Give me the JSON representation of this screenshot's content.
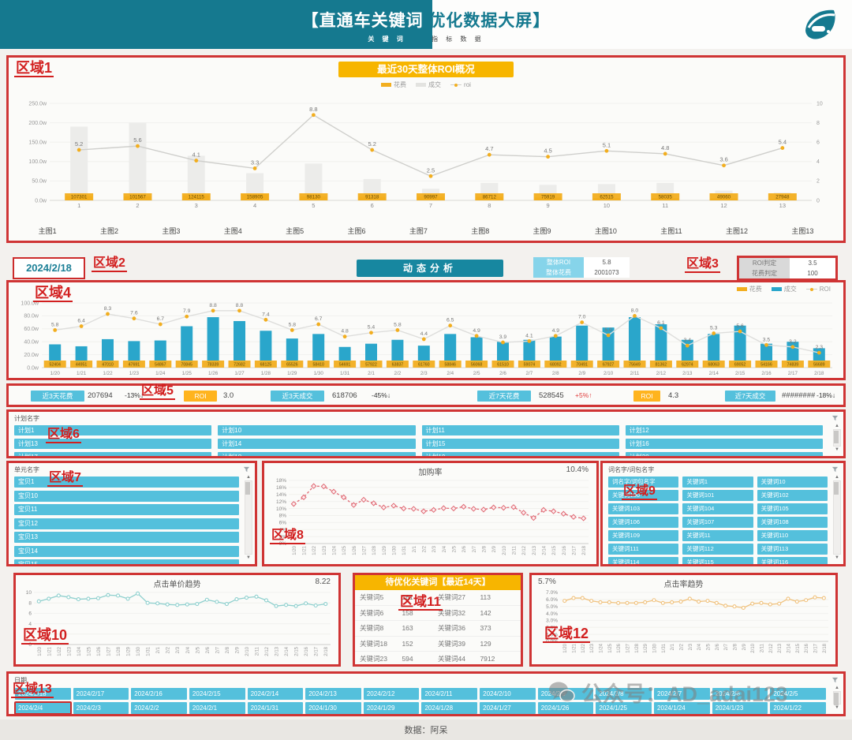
{
  "header": {
    "title_left": "【直通车关键词",
    "title_right": " 优化数据大屏】",
    "tab1": "关 键 词",
    "tab2": "指 标 数 据"
  },
  "annotations": [
    "区域1",
    "区域2",
    "区域3",
    "区域4",
    "区域5",
    "区域6",
    "区域7",
    "区域8",
    "区域9",
    "区域10",
    "区域11",
    "区域12",
    "区域13"
  ],
  "dates30": [
    "1/20",
    "1/21",
    "1/22",
    "1/23",
    "1/24",
    "1/25",
    "1/26",
    "1/27",
    "1/28",
    "1/29",
    "1/30",
    "1/31",
    "2/1",
    "2/2",
    "2/3",
    "2/4",
    "2/5",
    "2/6",
    "2/7",
    "2/8",
    "2/9",
    "2/10",
    "2/11",
    "2/12",
    "2/13",
    "2/14",
    "2/15",
    "2/16",
    "2/17",
    "2/18"
  ],
  "region1": {
    "banner": "最近30天整体ROI概况",
    "legend": [
      "花费",
      "成交",
      "roi"
    ],
    "thumbs": [
      "主图1",
      "主图2",
      "主图3",
      "主图4",
      "主图5",
      "主图6",
      "主图7",
      "主图8",
      "主图9",
      "主图10",
      "主图11",
      "主图12",
      "主图13"
    ]
  },
  "region2": {
    "date": "2024/2/18",
    "button": "动态分析",
    "overall": {
      "roi_label": "整体ROI",
      "roi_value": "5.8",
      "spend_label": "整体花费",
      "spend_value": "2001073"
    }
  },
  "region3": {
    "roi_label": "ROI判定",
    "roi_value": "3.5",
    "spend_label": "花费判定",
    "spend_value": "100"
  },
  "region4": {
    "legend": [
      "花费",
      "成交",
      "ROI"
    ]
  },
  "region5": {
    "items": [
      {
        "label": "近3天花费",
        "value": "207694",
        "delta": "-13%↓",
        "style": "blue",
        "red": false
      },
      {
        "label": "ROI",
        "value": "3.0",
        "delta": "",
        "style": "yellow",
        "red": false
      },
      {
        "label": "近3天成交",
        "value": "618706",
        "delta": "-45%↓",
        "style": "blue",
        "red": false
      },
      {
        "label": "近7天花费",
        "value": "528545",
        "delta": "+5%↑",
        "style": "blue",
        "red": true
      },
      {
        "label": "ROI",
        "value": "4.3",
        "delta": "",
        "style": "yellow",
        "red": false
      },
      {
        "label": "近7天成交",
        "value": "########",
        "delta": "-18%↓",
        "style": "blue",
        "red": false
      }
    ]
  },
  "region6": {
    "title": "计划名字",
    "items": [
      "计划1",
      "计划10",
      "计划11",
      "计划12",
      "计划13",
      "计划14",
      "计划15",
      "计划16",
      "计划17",
      "计划18",
      "计划19",
      "计划20"
    ]
  },
  "region7": {
    "title": "单元名字",
    "items": [
      "宝贝1",
      "宝贝10",
      "宝贝11",
      "宝贝12",
      "宝贝13",
      "宝贝14",
      "宝贝15"
    ]
  },
  "region8": {
    "title": "加购率",
    "summary": "10.4%"
  },
  "region9": {
    "title": "词名字/词包名字",
    "items": [
      "词名字/词包名字",
      "关键词1",
      "关键词10",
      "关键词100",
      "关键词101",
      "关键词102",
      "关键词103",
      "关键词104",
      "关键词105",
      "关键词106",
      "关键词107",
      "关键词108",
      "关键词109",
      "关键词11",
      "关键词110",
      "关键词111",
      "关键词112",
      "关键词113",
      "关键词114",
      "关键词115",
      "关键词116"
    ]
  },
  "region10": {
    "title": "点击单价趋势",
    "summary": "8.22"
  },
  "region11": {
    "title": "待优化关键词【最近14天】",
    "rows": [
      [
        "关键词5",
        "161",
        "关键词27",
        "113"
      ],
      [
        "关键词6",
        "158",
        "关键词32",
        "142"
      ],
      [
        "关键词8",
        "163",
        "关键词36",
        "373"
      ],
      [
        "关键词18",
        "152",
        "关键词39",
        "129"
      ],
      [
        "关键词23",
        "594",
        "关键词44",
        "7912"
      ]
    ]
  },
  "region12": {
    "title": "点击率趋势",
    "summary": "5.7%"
  },
  "region13": {
    "title": "日期",
    "selected": "2024/2/4",
    "rows": [
      [
        "2024/2/18",
        "2024/2/17",
        "2024/2/16",
        "2024/2/15",
        "2024/2/14",
        "2024/2/13",
        "2024/2/12",
        "2024/2/11",
        "2024/2/10",
        "2024/2/9",
        "2024/2/8",
        "2024/2/7",
        "2024/2/6",
        "2024/2/5"
      ],
      [
        "2024/2/4",
        "2024/2/3",
        "2024/2/2",
        "2024/2/1",
        "2024/1/31",
        "2024/1/30",
        "2024/1/29",
        "2024/1/28",
        "2024/1/27",
        "2024/1/26",
        "2024/1/25",
        "2024/1/24",
        "2024/1/23",
        "2024/1/22"
      ]
    ]
  },
  "footer": {
    "text": "数据：阿呆"
  },
  "watermark": {
    "text": "公众号：AD_adai123"
  },
  "chart_data": [
    {
      "region": "region1",
      "type": "bar+line combo",
      "title": "最近30天整体ROI概况",
      "categories": [
        "1",
        "2",
        "3",
        "4",
        "5",
        "6",
        "7",
        "8",
        "9",
        "10",
        "11",
        "12",
        "13"
      ],
      "series": [
        {
          "name": "花费",
          "values": [
            107301,
            101567,
            124115,
            158905,
            98130,
            91318,
            90997,
            86712,
            75919,
            62515,
            58035,
            49060,
            27948
          ]
        },
        {
          "name": "成交_万",
          "values": [
            190,
            200,
            115,
            70,
            95,
            55,
            30,
            45,
            40,
            42,
            45,
            25,
            20
          ]
        },
        {
          "name": "roi",
          "values": [
            5.2,
            5.6,
            4.1,
            3.3,
            8.8,
            5.2,
            2.5,
            4.7,
            4.5,
            5.1,
            4.8,
            3.6,
            5.4
          ]
        }
      ],
      "ylim_left_wan": [
        0,
        250
      ],
      "ylim_right": [
        0,
        10
      ],
      "legend_position": "top"
    },
    {
      "region": "region4",
      "type": "bar+line combo",
      "title": "动态分析(近30天)",
      "x_ref": "dates30",
      "series": [
        {
          "name": "花费",
          "values": [
            52404,
            44951,
            47010,
            47691,
            54867,
            70845,
            78339,
            72682,
            68125,
            65526,
            58410,
            54691,
            57922,
            63837,
            61760,
            58846,
            56068,
            61510,
            59074,
            68092,
            70491,
            67927,
            75649,
            81362,
            62974,
            68063,
            69052,
            54166,
            74839,
            56689
          ]
        },
        {
          "name": "成交_万",
          "values": [
            36,
            33,
            44,
            41,
            42,
            64,
            78,
            72,
            57,
            45,
            52,
            32,
            37,
            43,
            34,
            52,
            47,
            40,
            43,
            48,
            65,
            62,
            78,
            67,
            43,
            52,
            65,
            37,
            40,
            30
          ]
        },
        {
          "name": "ROI",
          "values": [
            5.8,
            6.4,
            8.3,
            7.6,
            6.7,
            7.9,
            8.8,
            8.8,
            7.4,
            5.8,
            6.7,
            4.8,
            5.4,
            5.8,
            4.4,
            6.5,
            4.9,
            3.9,
            4.1,
            4.9,
            7.0,
            5.0,
            8.0,
            6.1,
            3.4,
            5.3,
            5.6,
            3.5,
            3.2,
            2.3
          ]
        }
      ],
      "ylim_left_wan": [
        0,
        100
      ],
      "ylim_right": [
        0,
        10
      ],
      "legend_position": "top-right"
    },
    {
      "region": "region8",
      "type": "line",
      "title": "加购率",
      "x_ref": "dates30",
      "y": [
        11.3,
        13.2,
        16.4,
        16.3,
        14.8,
        13.2,
        11.0,
        12.5,
        11.5,
        10.3,
        10.8,
        10.0,
        9.9,
        9.2,
        9.6,
        10.1,
        10.0,
        10.5,
        9.9,
        9.7,
        10.3,
        10.2,
        10.4,
        8.8,
        7.3,
        9.6,
        9.2,
        8.5,
        7.6,
        7.2
      ],
      "ylim": [
        0,
        18
      ],
      "ytick_step": 2,
      "unit": "%"
    },
    {
      "region": "region10",
      "type": "line",
      "title": "点击单价趋势",
      "x_ref": "dates30",
      "y": [
        8.3,
        8.8,
        9.4,
        9.1,
        8.7,
        8.8,
        8.9,
        9.5,
        9.4,
        8.8,
        9.8,
        8.0,
        7.9,
        7.7,
        7.6,
        7.7,
        7.8,
        8.6,
        8.2,
        7.8,
        8.7,
        9.0,
        9.2,
        8.5,
        7.4,
        7.6,
        7.4,
        7.9,
        7.5,
        7.8
      ],
      "ylim": [
        0,
        10
      ],
      "ytick_step": 2,
      "unit": ""
    },
    {
      "region": "region12",
      "type": "line",
      "title": "点击率趋势",
      "x_ref": "dates30",
      "y": [
        5.8,
        6.2,
        6.2,
        5.8,
        5.6,
        5.6,
        5.5,
        5.5,
        5.5,
        5.6,
        5.9,
        5.5,
        5.6,
        5.7,
        6.1,
        5.7,
        5.8,
        5.5,
        5.1,
        5.0,
        4.8,
        5.4,
        5.5,
        5.3,
        5.4,
        6.1,
        5.7,
        5.9,
        6.3,
        6.2
      ],
      "ylim": [
        0,
        7
      ],
      "ytick_step": 1,
      "unit": "%"
    }
  ]
}
